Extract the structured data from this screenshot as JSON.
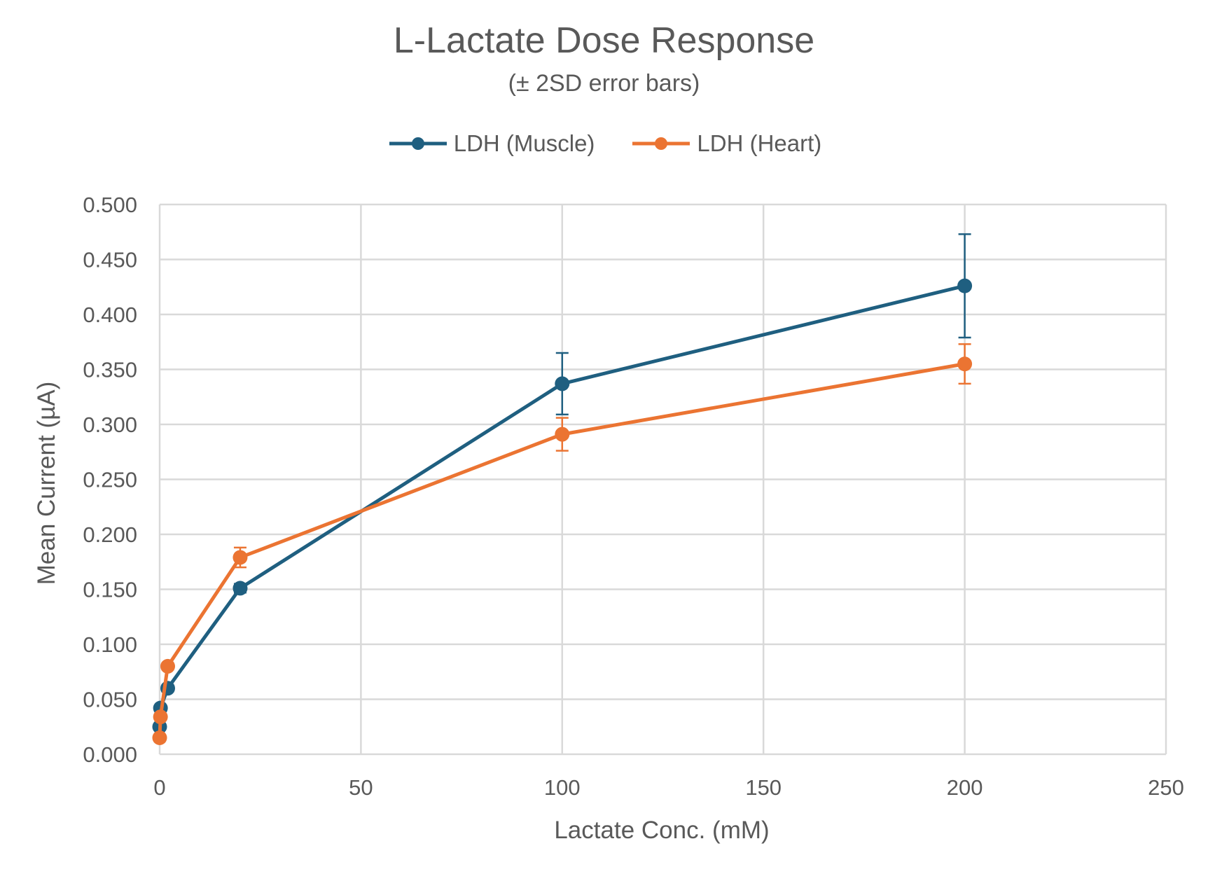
{
  "chart_data": {
    "type": "line",
    "title": "L-Lactate Dose Response",
    "subtitle": "(± 2SD error bars)",
    "xlabel": "Lactate Conc. (mM)",
    "ylabel": "Mean Current (µA)",
    "xlim": [
      0,
      250
    ],
    "ylim": [
      0,
      0.5
    ],
    "xticks": [
      "0",
      "50",
      "100",
      "150",
      "200",
      "250"
    ],
    "yticks": [
      "0.000",
      "0.050",
      "0.100",
      "0.150",
      "0.200",
      "0.250",
      "0.300",
      "0.350",
      "0.400",
      "0.450",
      "0.500"
    ],
    "grid": true,
    "legend_position": "top",
    "series": [
      {
        "name": "LDH (Muscle)",
        "color": "#1F5F80",
        "x": [
          0,
          0.2,
          2,
          20,
          100,
          200
        ],
        "y": [
          0.025,
          0.042,
          0.06,
          0.151,
          0.337,
          0.426
        ],
        "err": [
          0.002,
          0.002,
          0.003,
          0.004,
          0.028,
          0.047
        ]
      },
      {
        "name": "LDH (Heart)",
        "color": "#EB7432",
        "x": [
          0,
          0.2,
          2,
          20,
          100,
          200
        ],
        "y": [
          0.015,
          0.034,
          0.08,
          0.179,
          0.291,
          0.355
        ],
        "err": [
          0.002,
          0.002,
          0.003,
          0.009,
          0.015,
          0.018
        ]
      }
    ]
  }
}
